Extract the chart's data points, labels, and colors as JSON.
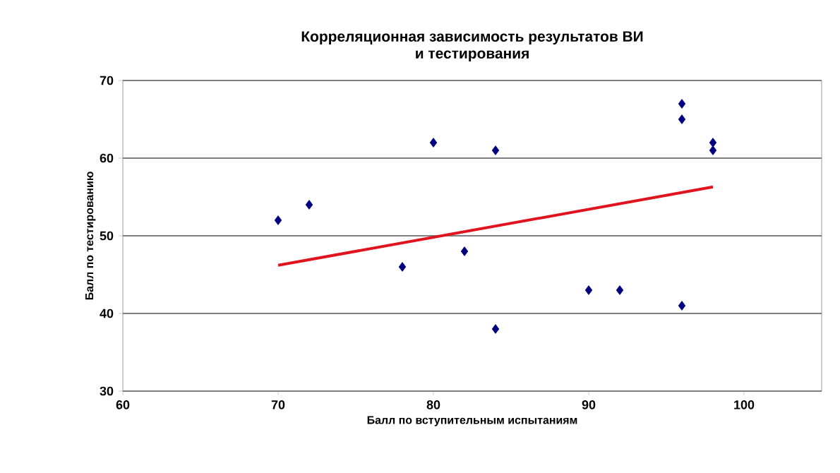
{
  "chart_data": {
    "type": "scatter",
    "title": "Корреляционная зависимость результатов ВИ\nи тестирования",
    "xlabel": "Балл по вступительным испытаниям",
    "ylabel": "Балл по тестированию",
    "xlim": [
      60,
      105
    ],
    "xticks": [
      60,
      70,
      80,
      90,
      100
    ],
    "ylim": [
      30,
      70
    ],
    "yticks": [
      30,
      40,
      50,
      60,
      70
    ],
    "grid": "y",
    "series": [
      {
        "color": "#000080",
        "marker": "diamond",
        "x": [
          70,
          72,
          78,
          80,
          82,
          84,
          84,
          90,
          92,
          96,
          96,
          96,
          98,
          98
        ],
        "values": [
          52,
          54,
          46,
          62,
          48,
          61,
          38,
          43,
          43,
          67,
          65,
          41,
          62,
          61
        ]
      },
      {
        "type": "line",
        "color": "#e0141e",
        "marker": "none",
        "line_style": "solid",
        "x": [
          70,
          98
        ],
        "values": [
          46.2,
          56.3
        ]
      }
    ]
  }
}
